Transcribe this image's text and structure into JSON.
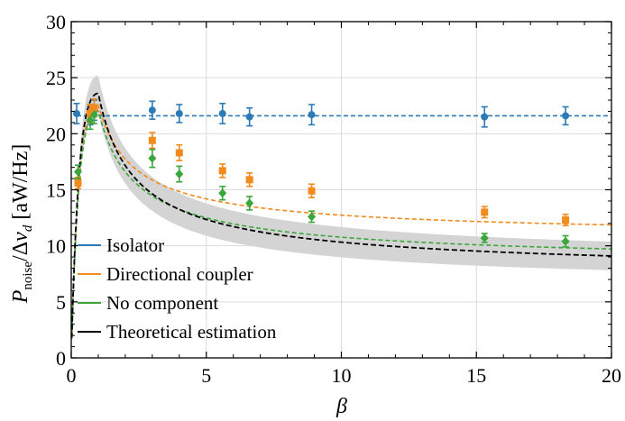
{
  "chart_data": {
    "type": "scatter",
    "xlabel": "β",
    "ylabel": "P_noise/Δν_d [aW/Hz]",
    "ylabel_parts": {
      "main": "P",
      "sub": "noise",
      "mid": "/Δ",
      "nu": "ν",
      "nusub": "d",
      "unit": " [aW/Hz]"
    },
    "xlim": [
      0,
      20
    ],
    "ylim": [
      0,
      30
    ],
    "xticks": [
      "0",
      "5",
      "10",
      "15",
      "20"
    ],
    "yticks": [
      "0",
      "5",
      "10",
      "15",
      "20",
      "25",
      "30"
    ],
    "grid": true,
    "legend_position": "bottom-left",
    "series": [
      {
        "name": "Isolator",
        "color": "#2c7bb6",
        "marker": "circle",
        "points": [
          [
            0.2,
            21.8
          ],
          [
            0.7,
            21.7
          ],
          [
            0.85,
            22.1
          ],
          [
            3.0,
            22.1
          ],
          [
            4.0,
            21.8
          ],
          [
            5.6,
            21.8
          ],
          [
            6.6,
            21.5
          ],
          [
            8.9,
            21.7
          ],
          [
            15.3,
            21.5
          ],
          [
            18.3,
            21.6
          ]
        ],
        "errors": [
          0.9,
          0.9,
          0.9,
          0.8,
          0.8,
          0.9,
          0.8,
          0.9,
          0.9,
          0.8
        ],
        "fit": "const 21.6"
      },
      {
        "name": "Directional coupler",
        "color": "#f28a1c",
        "marker": "square",
        "points": [
          [
            0.25,
            15.6
          ],
          [
            0.7,
            21.8
          ],
          [
            0.85,
            22.3
          ],
          [
            3.0,
            19.4
          ],
          [
            4.0,
            18.3
          ],
          [
            5.6,
            16.7
          ],
          [
            6.6,
            15.9
          ],
          [
            8.9,
            14.9
          ],
          [
            15.3,
            13.0
          ],
          [
            18.3,
            12.3
          ]
        ],
        "errors": [
          0.5,
          0.8,
          0.8,
          0.7,
          0.7,
          0.6,
          0.6,
          0.6,
          0.5,
          0.5
        ],
        "fit": "peak-decay high"
      },
      {
        "name": "No component",
        "color": "#3ca63c",
        "marker": "diamond",
        "points": [
          [
            0.25,
            16.6
          ],
          [
            0.7,
            21.2
          ],
          [
            0.85,
            21.7
          ],
          [
            3.0,
            17.8
          ],
          [
            4.0,
            16.4
          ],
          [
            5.6,
            14.7
          ],
          [
            6.6,
            13.8
          ],
          [
            8.9,
            12.6
          ],
          [
            15.3,
            10.7
          ],
          [
            18.3,
            10.4
          ]
        ],
        "errors": [
          0.6,
          0.8,
          0.8,
          0.8,
          0.7,
          0.6,
          0.6,
          0.5,
          0.4,
          0.5
        ],
        "fit": "peak-decay"
      },
      {
        "name": "Theoretical estimation",
        "color": "#000000",
        "marker": "none",
        "fit": "peak-decay with band"
      }
    ]
  }
}
